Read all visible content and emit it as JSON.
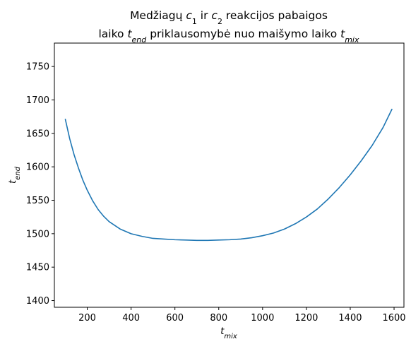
{
  "chart_data": {
    "type": "line",
    "title_line1": [
      "Medžiagų ",
      "c",
      "1",
      " ir ",
      "c",
      "2",
      " reakcijos pabaigos"
    ],
    "title_line2": [
      "laiko ",
      "t",
      "end",
      " priklausomybė nuo maišymo laiko ",
      "t",
      "mix"
    ],
    "xlabel": [
      "t",
      "mix"
    ],
    "ylabel": [
      "t",
      "end"
    ],
    "xlim": [
      50,
      1645
    ],
    "ylim": [
      1390,
      1785
    ],
    "x_ticks": [
      "200",
      "400",
      "600",
      "800",
      "1000",
      "1200",
      "1400",
      "1600"
    ],
    "y_ticks": [
      "1400",
      "1450",
      "1500",
      "1550",
      "1600",
      "1650",
      "1700",
      "1750"
    ],
    "grid": false,
    "series": [
      {
        "color": "#1f77b4",
        "x": [
          100,
          120,
          140,
          160,
          180,
          200,
          225,
          250,
          275,
          300,
          350,
          400,
          450,
          500,
          550,
          600,
          650,
          700,
          750,
          800,
          850,
          900,
          950,
          1000,
          1050,
          1100,
          1150,
          1200,
          1250,
          1300,
          1350,
          1400,
          1450,
          1500,
          1550,
          1590
        ],
        "y": [
          1671,
          1642,
          1618,
          1598,
          1580,
          1565,
          1549,
          1536,
          1526,
          1518,
          1507,
          1500,
          1496,
          1493,
          1492,
          1491,
          1490.5,
          1490,
          1490,
          1490.5,
          1491,
          1492,
          1494,
          1497,
          1501,
          1507,
          1515,
          1525,
          1537,
          1552,
          1569,
          1588,
          1609,
          1632,
          1659,
          1686
        ]
      }
    ]
  }
}
